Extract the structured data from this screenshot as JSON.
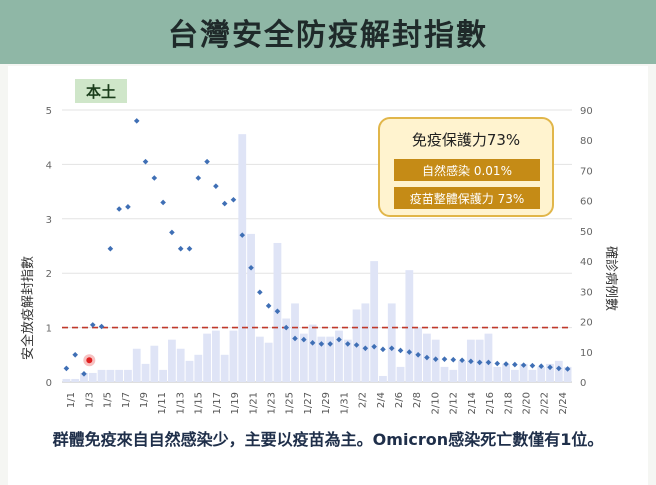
{
  "header": {
    "title": "台灣安全防疫解封指數"
  },
  "badge": {
    "label": "本土"
  },
  "callout": {
    "title": "免疫保護力73%",
    "natural": "自然感染 0.01%",
    "vaccine": "疫苗整體保護力 73%"
  },
  "caption": "群體免疫來自自然感染少，主要以疫苗為主。Omicron感染死亡數僅有1位。",
  "colors": {
    "header_bg": "#8fb7a6",
    "bar": "#dfe4f6",
    "point": "#3f6fb5",
    "threshold": "#c0392b",
    "callout_bg": "#fff3cf",
    "callout_border": "#e1b64a",
    "callout_bar": "#c58b16"
  },
  "chart_data": {
    "type": "bar+scatter",
    "ylabel": "安全放疫解封指數",
    "y2label": "確診病例數",
    "ylim": [
      0,
      5
    ],
    "y2lim": [
      0,
      90
    ],
    "y_ticks": [
      0,
      1,
      2,
      3,
      4,
      5
    ],
    "y2_ticks": [
      0,
      10,
      20,
      30,
      40,
      50,
      60,
      70,
      80,
      90
    ],
    "x_tick_labels": [
      "1/1",
      "1/3",
      "1/5",
      "1/7",
      "1/9",
      "1/11",
      "1/13",
      "1/15",
      "1/17",
      "1/19",
      "1/21",
      "1/23",
      "1/25",
      "1/27",
      "1/29",
      "1/31",
      "2/2",
      "2/4",
      "2/6",
      "2/8",
      "2/10",
      "2/12",
      "2/14",
      "2/16",
      "2/18",
      "2/20",
      "2/22",
      "2/24"
    ],
    "threshold": 1,
    "bars": {
      "name": "確診病例數",
      "values": [
        1,
        1,
        3,
        3,
        4,
        4,
        4,
        4,
        11,
        6,
        12,
        4,
        14,
        11,
        7,
        9,
        16,
        17,
        9,
        17,
        82,
        49,
        15,
        13,
        46,
        21,
        26,
        16,
        19,
        15,
        15,
        17,
        14,
        24,
        26,
        40,
        2,
        26,
        5,
        37,
        18,
        16,
        14,
        5,
        4,
        7,
        14,
        14,
        16,
        5,
        6,
        4,
        6,
        4,
        5,
        6,
        7,
        5
      ]
    },
    "index_points": {
      "name": "安全放疫解封指數",
      "values": [
        0.25,
        0.5,
        0.15,
        1.05,
        1.02,
        2.45,
        3.18,
        3.22,
        4.8,
        4.05,
        3.75,
        3.3,
        2.75,
        2.45,
        2.45,
        3.75,
        4.05,
        3.6,
        3.28,
        3.35,
        2.7,
        2.1,
        1.65,
        1.4,
        1.3,
        1.0,
        0.8,
        0.78,
        0.72,
        0.7,
        0.7,
        0.78,
        0.7,
        0.68,
        0.62,
        0.65,
        0.6,
        0.62,
        0.58,
        0.55,
        0.5,
        0.45,
        0.42,
        0.42,
        0.41,
        0.4,
        0.38,
        0.36,
        0.36,
        0.34,
        0.33,
        0.32,
        0.31,
        0.3,
        0.29,
        0.27,
        0.25,
        0.24
      ]
    },
    "highlight_point": {
      "x": "1/3",
      "y": 0.4
    }
  }
}
